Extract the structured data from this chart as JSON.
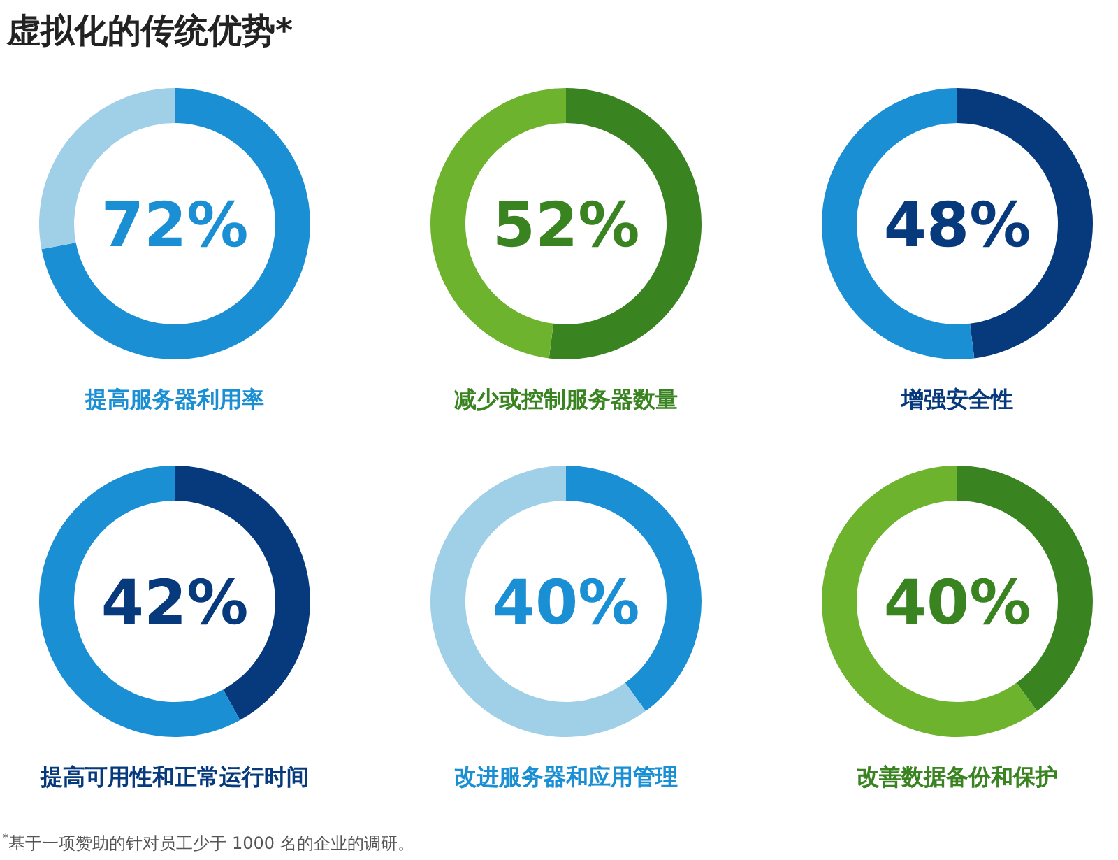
{
  "chart_data": [
    {
      "type": "donut",
      "title": "虚拟化的传统优势*",
      "xlabel": "提高服务器利用率",
      "categories": [
        null,
        null
      ],
      "values": [
        72,
        28
      ],
      "colors": [
        "#1a8fd4",
        "#9fd0e8"
      ],
      "annotations": [
        "72%"
      ]
    },
    {
      "type": "donut",
      "xlabel": "减少或控制服务器数量",
      "categories": [
        null,
        null
      ],
      "values": [
        52,
        48
      ],
      "colors": [
        "#3a8321",
        "#6db32e"
      ],
      "annotations": [
        "52%"
      ]
    },
    {
      "type": "donut",
      "xlabel": "增强安全性",
      "categories": [
        null,
        null
      ],
      "values": [
        48,
        52
      ],
      "colors": [
        "#073a7c",
        "#1a8fd4"
      ],
      "annotations": [
        "48%"
      ]
    },
    {
      "type": "donut",
      "xlabel": "提高可用性和正常运行时间",
      "categories": [
        null,
        null
      ],
      "values": [
        42,
        58
      ],
      "colors": [
        "#073a7c",
        "#1a8fd4"
      ],
      "annotations": [
        "42%"
      ]
    },
    {
      "type": "donut",
      "xlabel": "改进服务器和应用管理",
      "categories": [
        null,
        null
      ],
      "values": [
        40,
        60
      ],
      "colors": [
        "#1a8fd4",
        "#9fd0e8"
      ],
      "annotations": [
        "40%"
      ]
    },
    {
      "type": "donut",
      "xlabel": "改善数据备份和保护",
      "categories": [
        null,
        null
      ],
      "values": [
        40,
        60
      ],
      "colors": [
        "#3a8321",
        "#6db32e"
      ],
      "annotations": [
        "40%",
        "$^{*}$基于一项赞助的针对员工少于 1000 名的企业的调研。"
      ]
    }
  ]
}
